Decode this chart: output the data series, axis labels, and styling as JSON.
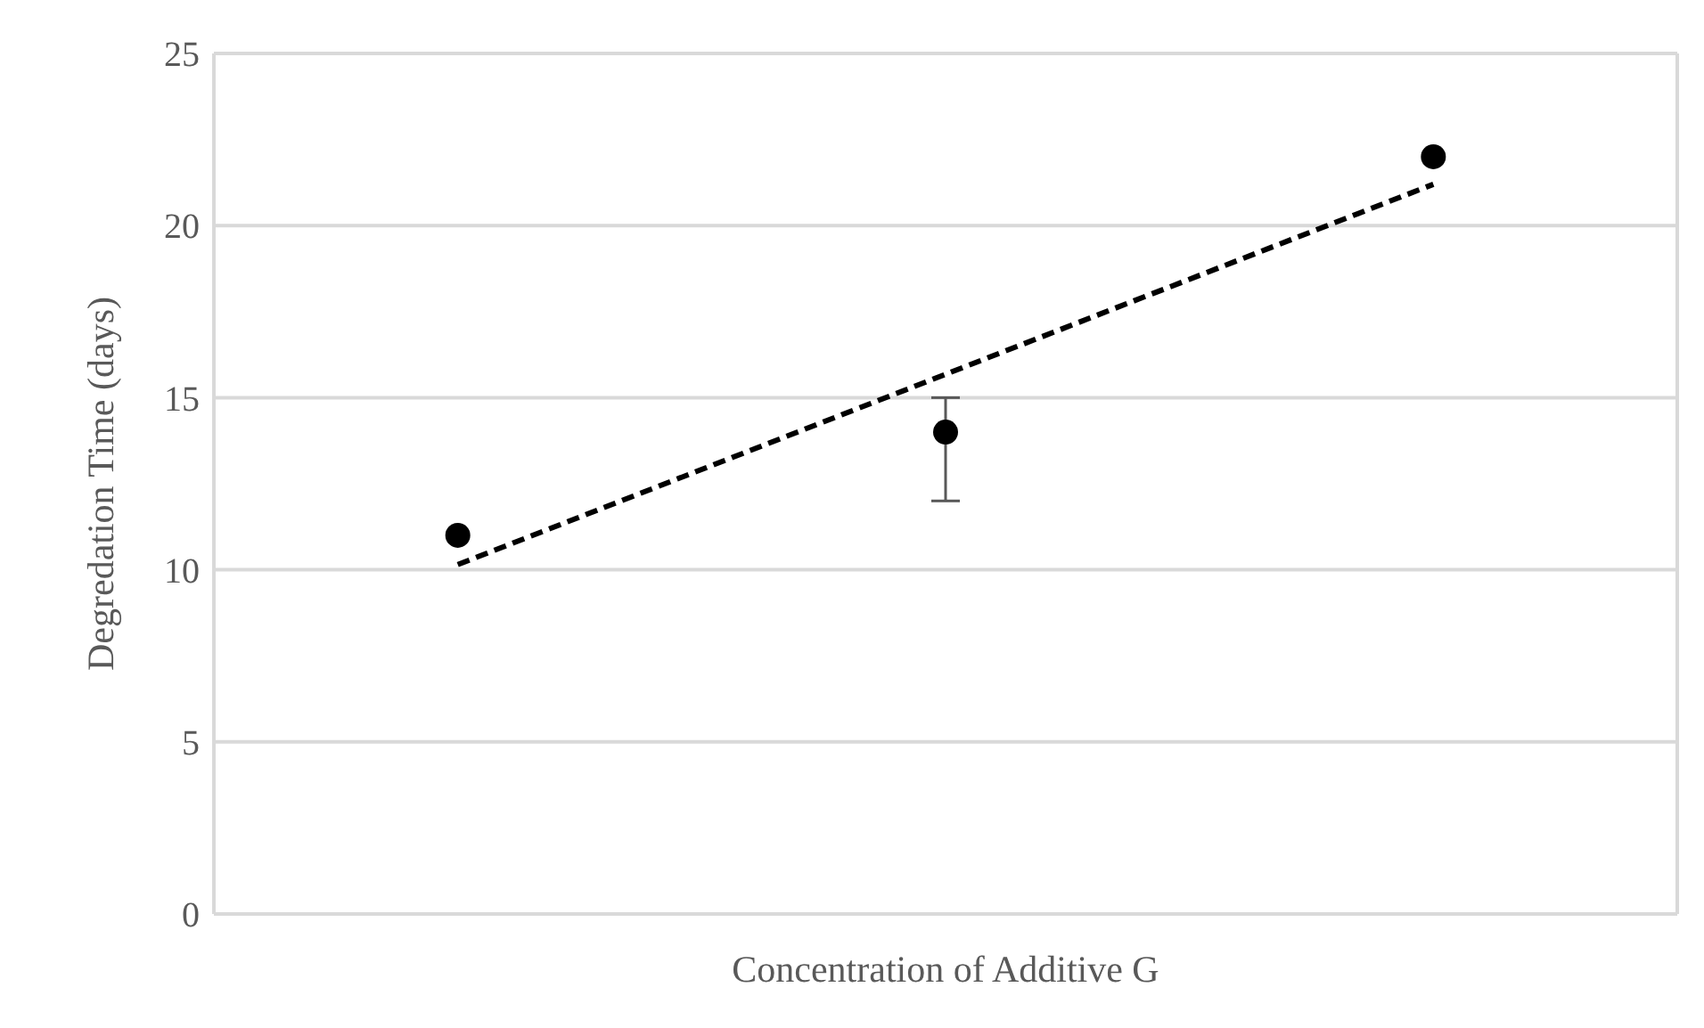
{
  "chart_data": {
    "type": "scatter",
    "xlabel": "Concentration of Additive G",
    "ylabel": "Degredation Time (days)",
    "categories": [
      null,
      null,
      null
    ],
    "ylim": [
      0,
      25
    ],
    "yticks": [
      0,
      5,
      10,
      15,
      20,
      25
    ],
    "grid": true,
    "tick_labels": "y",
    "marker": "circle",
    "series": [
      {
        "color": "#000000",
        "values": [
          11,
          14,
          22
        ],
        "errors": [
          null,
          [
            12,
            15
          ],
          null
        ]
      },
      {
        "type": "line",
        "line_style": "dashed",
        "marker": "none",
        "color": "#000000",
        "values": [
          10.15,
          15.68,
          21.2
        ]
      }
    ]
  }
}
